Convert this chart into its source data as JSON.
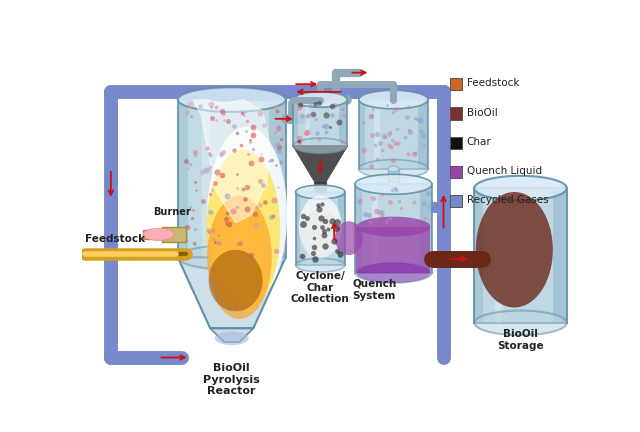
{
  "legend_items": [
    {
      "label": "Feedstock",
      "color": "#CC6622"
    },
    {
      "label": "BioOil",
      "color": "#7B3030"
    },
    {
      "label": "Char",
      "color": "#111111"
    },
    {
      "label": "Quench Liquid",
      "color": "#9944AA"
    },
    {
      "label": "Recycled Gases",
      "color": "#7788CC"
    }
  ],
  "colors": {
    "steel_body": "#b8d4e0",
    "steel_top": "#d8eaf5",
    "steel_dark": "#6090a8",
    "steel_shine": "#e8f4fc",
    "fire_white": "#FFFEF0",
    "fire_yellow": "#FFE040",
    "fire_orange": "#FFA020",
    "fire_brown": "#8B4500",
    "feedstock_gold": "#D4A020",
    "feedstock_dark": "#8B6000",
    "biooil": "#6B2818",
    "char": "#1a1a1a",
    "quench_liquid": "#9944AA",
    "recycled_gas": "#7788CC",
    "pipe_gray": "#90a8b8",
    "arrow_red": "#CC1111",
    "dots_pink": "#DD7799",
    "dots_blue": "#8899CC",
    "dots_red": "#CC5555",
    "burner_body": "#C8B870",
    "flame_pink": "#FFB0C0",
    "bottom_blue": "#8090C0"
  }
}
